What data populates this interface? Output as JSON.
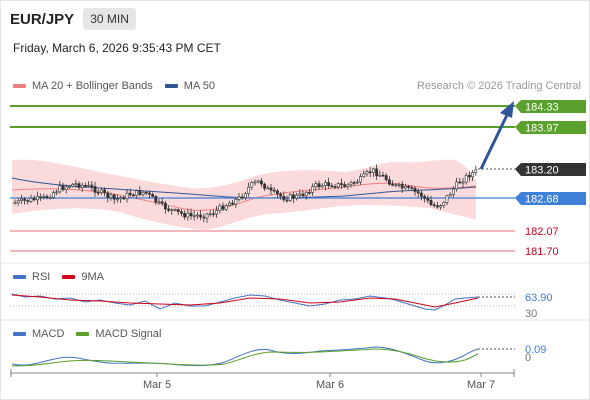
{
  "header": {
    "symbol": "EUR/JPY",
    "timeframe": "30 MIN",
    "datetime": "Friday, March 6, 2026 9:35:43 PM CET",
    "credit": "Research © 2026 Trading Central"
  },
  "main_legend": [
    {
      "label": "MA 20 + Bollinger Bands",
      "color": "#f08080"
    },
    {
      "label": "MA 50",
      "color": "#2f5597"
    }
  ],
  "rsi_legend": [
    {
      "label": "RSI",
      "color": "#4472c4"
    },
    {
      "label": "9MA",
      "color": "#d0021b"
    }
  ],
  "macd_legend": [
    {
      "label": "MACD",
      "color": "#4472c4"
    },
    {
      "label": "MACD Signal",
      "color": "#5aa02c"
    }
  ],
  "levels": {
    "resistance_2": "184.33",
    "resistance_1": "183.97",
    "current": "183.20",
    "pivot": "182.68",
    "support_1": "182.07",
    "support_2": "181.70"
  },
  "rsi": {
    "value": "63.90",
    "lower_label": "30",
    "upper_label": "30"
  },
  "macd": {
    "value": "0.09",
    "zero_label": "0"
  },
  "xaxis": {
    "labels": [
      "Mar 5",
      "Mar 6",
      "Mar 7"
    ]
  },
  "colors": {
    "resistance": "#5aa02c",
    "support": "#e8707a",
    "pivot": "#3d7fd9",
    "current": "#333333",
    "arrow": "#2f5597",
    "candle": "#333333",
    "band": "#f9d4d4"
  },
  "chart_data": {
    "type": "candlestick",
    "x_labels": [
      "Mar 5",
      "Mar 6",
      "Mar 7"
    ],
    "price_levels": [
      184.33,
      183.97,
      183.2,
      182.68,
      182.07,
      181.7
    ],
    "last_price": 183.2,
    "forecast_target": 184.33,
    "rsi_last": 63.9,
    "macd_last": 0.09
  }
}
